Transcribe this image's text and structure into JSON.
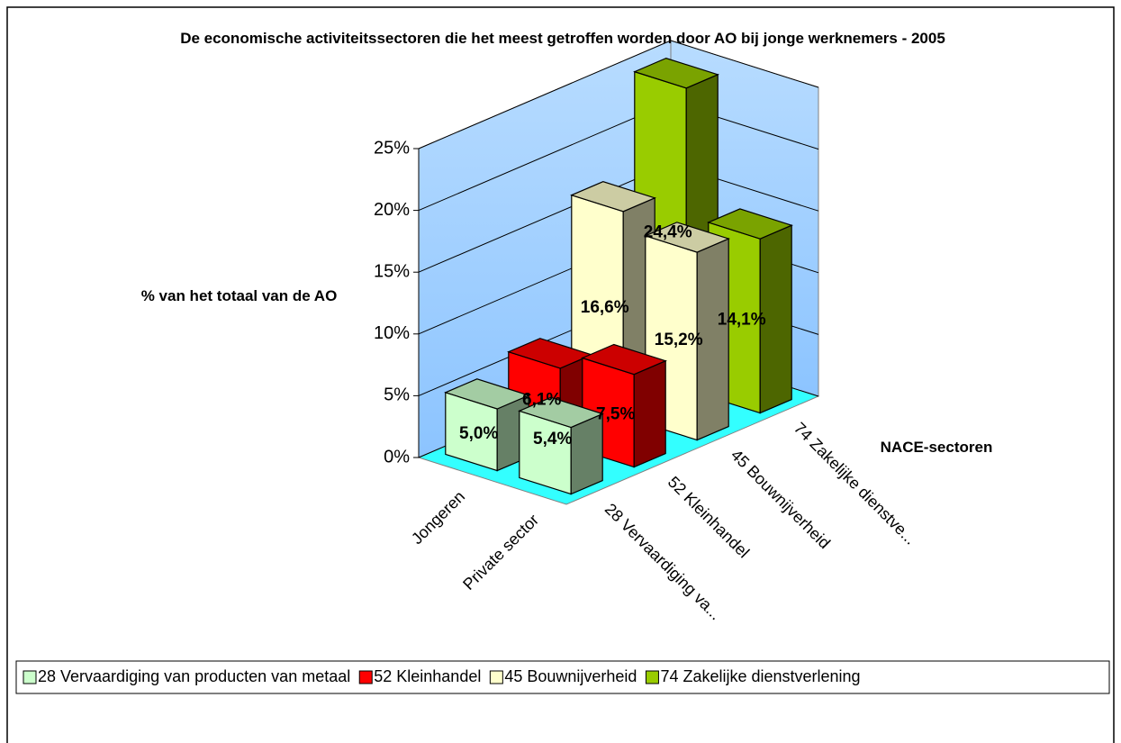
{
  "chart_data": {
    "type": "bar3d",
    "title": "De economische activiteitssectoren die het meest getroffen worden door AO bij jonge werknemers - 2005",
    "y_label": "% van het totaal van de AO",
    "depth_title": "NACE-sectoren",
    "categories": [
      "Jongeren",
      "Private sector"
    ],
    "depth_labels": [
      "28 Vervaardiging va...",
      "52 Kleinhandel",
      "45 Bouwnijverheid",
      "74 Zakelijke dienstve..."
    ],
    "series": [
      {
        "name": "28 Vervaardiging van producten van metaal",
        "color": "#ccffcc",
        "values": [
          5.0,
          5.4
        ],
        "value_labels": [
          "5,0%",
          "5,4%"
        ]
      },
      {
        "name": "52 Kleinhandel",
        "color": "#ff0000",
        "values": [
          6.1,
          7.5
        ],
        "value_labels": [
          "6,1%",
          "7,5%"
        ]
      },
      {
        "name": "45 Bouwnijverheid",
        "color": "#ffffcc",
        "values": [
          16.6,
          15.2
        ],
        "value_labels": [
          "16,6%",
          "15,2%"
        ]
      },
      {
        "name": "74 Zakelijke dienstverlening",
        "color": "#99cc00",
        "values": [
          24.4,
          14.1
        ],
        "value_labels": [
          "24,4%",
          "14,1%"
        ]
      }
    ],
    "ylim": [
      0,
      25
    ],
    "yticks": [
      {
        "value": 0,
        "label": "0%"
      },
      {
        "value": 5,
        "label": "5%"
      },
      {
        "value": 10,
        "label": "10%"
      },
      {
        "value": 15,
        "label": "15%"
      },
      {
        "value": 20,
        "label": "20%"
      },
      {
        "value": 25,
        "label": "25%"
      }
    ],
    "grid": true,
    "legend": "bottom"
  }
}
